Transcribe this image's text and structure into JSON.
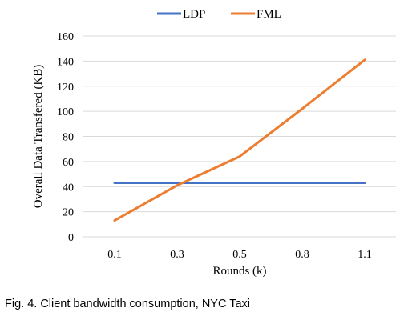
{
  "chart_data": {
    "type": "line",
    "title": "",
    "xlabel": "Rounds (k)",
    "ylabel": "Overall Data Transfered (KB)",
    "categories": [
      "0.1",
      "0.3",
      "0.5",
      "0.8",
      "1.1"
    ],
    "ylim": [
      0,
      160
    ],
    "yticks": [
      0,
      20,
      40,
      60,
      80,
      100,
      120,
      140,
      160
    ],
    "grid": true,
    "legend_position": "top-center",
    "series": [
      {
        "name": "LDP",
        "color": "#4472C4",
        "values": [
          43,
          43,
          43,
          43,
          43
        ]
      },
      {
        "name": "FML",
        "color": "#ED7D31",
        "values": [
          13,
          41,
          64,
          102,
          141
        ]
      }
    ]
  },
  "caption": "Fig. 4. Client bandwidth consumption, NYC Taxi"
}
